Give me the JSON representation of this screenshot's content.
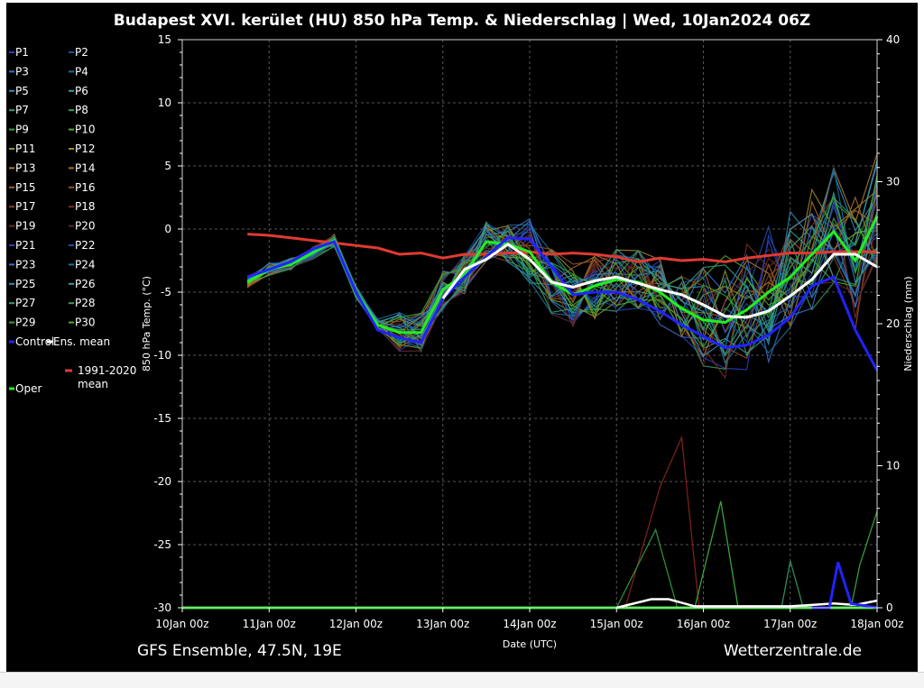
{
  "chart_data": {
    "type": "line",
    "title": "Budapest XVI. kerület  (HU)  850 hPa Temp. & Niederschlag | Wed, 10Jan2024 06Z",
    "xlabel": "Date (UTC)",
    "ylabel": "850 hPa Temp. (°C)",
    "y2label": "Niederschlag (mm)",
    "ylim": [
      -30,
      15
    ],
    "y2lim": [
      0,
      40
    ],
    "xlim": [
      0,
      8
    ],
    "x_unit": "days since 10Jan 00z",
    "yticks": [
      "15",
      "10",
      "5",
      "0",
      "-5",
      "-10",
      "-15",
      "-20",
      "-25",
      "-30"
    ],
    "y2ticks": [
      "40",
      "30",
      "20",
      "10",
      "0"
    ],
    "xticks": [
      "10Jan 00z",
      "11Jan 00z",
      "12Jan 00z",
      "13Jan 00z",
      "14Jan 00z",
      "15Jan 00z",
      "16Jan 00z",
      "17Jan 00z",
      "18Jan 00z"
    ],
    "grid": true,
    "source": "GFS Ensemble, 47.5N, 19E",
    "credit": "Wetterzentrale.de",
    "legend": {
      "members": [
        "P1",
        "P2",
        "P3",
        "P4",
        "P5",
        "P6",
        "P7",
        "P8",
        "P9",
        "P10",
        "P11",
        "P12",
        "P13",
        "P14",
        "P15",
        "P16",
        "P17",
        "P18",
        "P19",
        "P20",
        "P21",
        "P22",
        "P23",
        "P24",
        "P25",
        "P26",
        "P27",
        "P28",
        "P29",
        "P30"
      ],
      "control": "Control",
      "mean": "Ens. mean",
      "climate": "1991-2020 mean",
      "oper": "Oper"
    },
    "temperature": {
      "control": {
        "color": "#2222ff",
        "x": [
          0.75,
          1,
          1.25,
          1.5,
          1.75,
          2,
          2.25,
          2.5,
          2.75,
          3,
          3.25,
          3.5,
          3.75,
          4,
          4.25,
          4.5,
          4.75,
          5,
          5.25,
          5.5,
          5.75,
          6,
          6.25,
          6.5,
          6.75,
          7,
          7.25,
          7.5,
          7.75,
          8
        ],
        "y": [
          -3.8,
          -3.2,
          -2.6,
          -1.6,
          -1.0,
          -5,
          -8,
          -8.6,
          -9,
          -5.5,
          -3.8,
          -2.2,
          -0.7,
          -0.8,
          -3,
          -5.2,
          -5,
          -5,
          -5.6,
          -6.5,
          -7.6,
          -8.5,
          -9.4,
          -9.2,
          -8.4,
          -7,
          -4.5,
          -3.8,
          -8,
          -11.2
        ]
      },
      "mean": {
        "color": "#ffffff",
        "x": [
          3,
          3.25,
          3.5,
          3.75,
          4,
          4.25,
          4.5,
          4.75,
          5,
          5.25,
          5.5,
          5.75,
          6,
          6.25,
          6.5,
          6.75,
          7,
          7.25,
          7.5,
          7.75,
          8
        ],
        "y": [
          -5.5,
          -3.2,
          -2.4,
          -1.2,
          -2.4,
          -4.2,
          -4.6,
          -4.1,
          -3.8,
          -4.3,
          -4.8,
          -5.2,
          -6.0,
          -6.9,
          -7.0,
          -6.5,
          -5.3,
          -4.0,
          -2.0,
          -2.0,
          -3.0
        ]
      },
      "climate": {
        "color": "#e03a32",
        "x": [
          0.75,
          1,
          1.25,
          1.5,
          1.75,
          2,
          2.25,
          2.5,
          2.75,
          3,
          3.25,
          3.5,
          3.75,
          4,
          4.25,
          4.5,
          4.75,
          5,
          5.25,
          5.5,
          5.75,
          6,
          6.25,
          6.5,
          6.75,
          7,
          7.25,
          7.5,
          7.75,
          8
        ],
        "y": [
          -0.4,
          -0.5,
          -0.7,
          -0.9,
          -1.1,
          -1.3,
          -1.5,
          -2.0,
          -1.9,
          -2.3,
          -2.0,
          -2.0,
          -1.9,
          -1.8,
          -2.0,
          -1.9,
          -2.0,
          -2.2,
          -2.6,
          -2.3,
          -2.5,
          -2.4,
          -2.6,
          -2.3,
          -2.1,
          -1.9,
          -1.9,
          -1.8,
          -1.8,
          -1.8
        ]
      },
      "oper": {
        "color": "#22ee22",
        "x": [
          0.75,
          1,
          1.25,
          1.5,
          1.75,
          2,
          2.25,
          2.5,
          2.75,
          3,
          3.25,
          3.5,
          3.75,
          4,
          4.25,
          4.5,
          4.75,
          5,
          5.25,
          5.5,
          5.75,
          6,
          6.25,
          6.5,
          6.75,
          7,
          7.25,
          7.5,
          7.75,
          8
        ],
        "y": [
          -4.2,
          -3.2,
          -2.8,
          -1.9,
          -0.9,
          -5,
          -7.6,
          -8.2,
          -8.2,
          -4.8,
          -3.6,
          -1.0,
          -1.2,
          -1.8,
          -4.2,
          -5.2,
          -4.5,
          -4.0,
          -4.2,
          -5.0,
          -6.3,
          -7.2,
          -7.4,
          -6.4,
          -5.0,
          -3.8,
          -2.0,
          -0.2,
          -2.5,
          1.0
        ]
      }
    },
    "precipitation": {
      "control": {
        "color": "#2222ff",
        "x": [
          7.25,
          7.45,
          7.55,
          7.7,
          8
        ],
        "y": [
          0,
          0,
          3.2,
          0.3,
          0
        ]
      },
      "mean": {
        "color": "#ffffff",
        "x": [
          5,
          5.4,
          5.6,
          5.9,
          6.5,
          7,
          7.25,
          7.5,
          7.75,
          8
        ],
        "y": [
          0,
          0.6,
          0.6,
          0.1,
          0.1,
          0.1,
          0.2,
          0.3,
          0.2,
          0.5
        ]
      },
      "oper": {
        "color": "#22ee22",
        "x": [
          0,
          8
        ],
        "y": [
          0,
          0
        ]
      },
      "member_spikes": [
        {
          "color": "#7a1f1a",
          "x": [
            5.1,
            5.5,
            5.75,
            5.95
          ],
          "y": [
            0,
            8.5,
            12,
            0
          ]
        },
        {
          "color": "#2e8b3a",
          "x": [
            5.0,
            5.45,
            5.7
          ],
          "y": [
            0,
            5.5,
            0
          ]
        },
        {
          "color": "#3aa33a",
          "x": [
            5.9,
            6.2,
            6.4
          ],
          "y": [
            0,
            7.5,
            0
          ]
        },
        {
          "color": "#2e8b57",
          "x": [
            6.9,
            7.0,
            7.15
          ],
          "y": [
            0,
            3.3,
            0
          ]
        },
        {
          "color": "#3a9a3a",
          "x": [
            7.7,
            7.8,
            8.0
          ],
          "y": [
            0,
            3.0,
            6.8
          ]
        }
      ]
    },
    "member_palette": [
      "#2a3fbf",
      "#1f4fa8",
      "#3a6fd0",
      "#1e6fa0",
      "#2f8fbf",
      "#35a0a0",
      "#2f9f7f",
      "#3aa060",
      "#2fa83a",
      "#4fae2a",
      "#8a9a2a",
      "#a08a2a",
      "#b07a30",
      "#a0702a",
      "#a8602a",
      "#9a502a",
      "#8a3f28",
      "#7a3020",
      "#6e2a22",
      "#5e2a30"
    ]
  }
}
